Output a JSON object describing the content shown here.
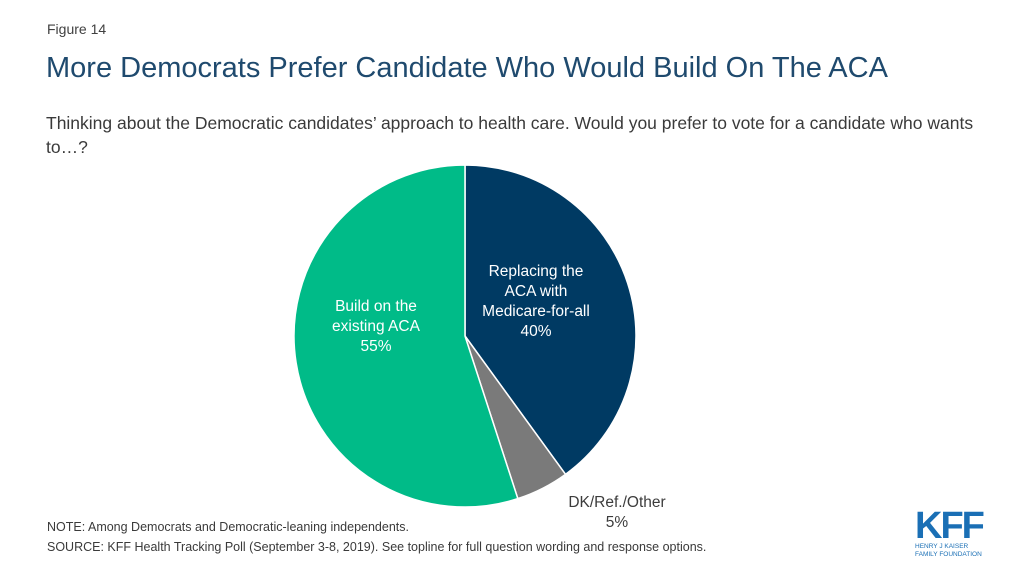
{
  "figure_label": "Figure 14",
  "title": "More Democrats Prefer Candidate Who Would Build On The ACA",
  "subtitle": "Thinking about the Democratic candidates’ approach to health care. Would you prefer to vote for a candidate who wants to…?",
  "chart_data": {
    "type": "pie",
    "slices": [
      {
        "label_lines": [
          "Replacing the",
          "ACA with",
          "Medicare-for-all",
          "40%"
        ],
        "value": 40,
        "color": "#003a63",
        "text_color": "#ffffff"
      },
      {
        "label_lines": [
          "DK/Ref./Other",
          "5%"
        ],
        "value": 5,
        "color": "#7a7a7a",
        "text_color": "#3c3c3c"
      },
      {
        "label_lines": [
          "Build on the",
          "existing ACA",
          "55%"
        ],
        "value": 55,
        "color": "#00bb88",
        "text_color": "#ffffff"
      }
    ]
  },
  "note": "NOTE: Among Democrats and Democratic-leaning independents.",
  "source": "SOURCE: KFF Health Tracking Poll (September 3-8, 2019). See topline for full question wording and response options.",
  "logo": {
    "mark": "KFF",
    "line1": "Henry J Kaiser",
    "line2": "Family Foundation"
  }
}
